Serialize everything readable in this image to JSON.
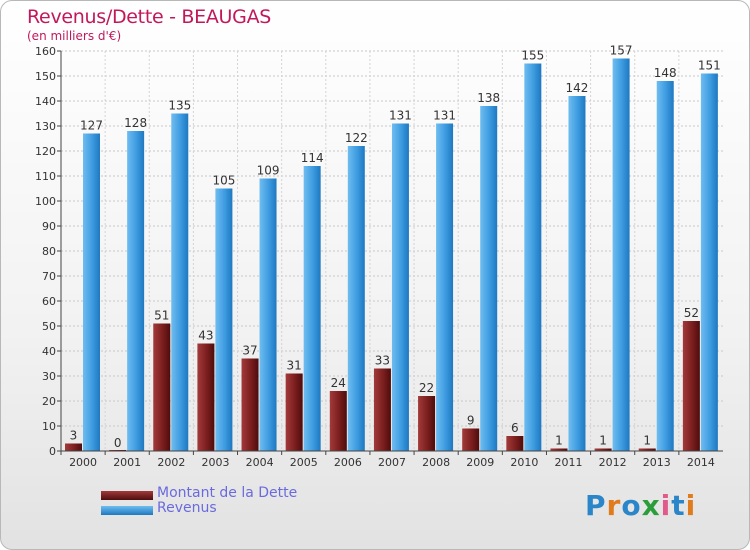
{
  "header": {
    "title": "Revenus/Dette - BEAUGAS",
    "subtitle": "(en milliers d'€)"
  },
  "chart_data": {
    "type": "bar",
    "categories": [
      "2000",
      "2001",
      "2002",
      "2003",
      "2004",
      "2005",
      "2006",
      "2007",
      "2008",
      "2009",
      "2010",
      "2011",
      "2012",
      "2013",
      "2014"
    ],
    "series": [
      {
        "name": "Montant de la Dette",
        "color": "#7b1e1e",
        "values": [
          3,
          0,
          51,
          43,
          37,
          31,
          24,
          33,
          22,
          9,
          6,
          1,
          1,
          1,
          52
        ]
      },
      {
        "name": "Revenus",
        "color": "#3d9be0",
        "values": [
          127,
          128,
          135,
          105,
          109,
          114,
          122,
          131,
          131,
          138,
          155,
          142,
          157,
          148,
          151
        ]
      }
    ],
    "ylim": [
      0,
      160
    ],
    "yticks": [
      0,
      10,
      20,
      30,
      40,
      50,
      60,
      70,
      80,
      90,
      100,
      110,
      120,
      130,
      140,
      150,
      160
    ],
    "grid": true,
    "legend_position": "bottom-left"
  },
  "legend": {
    "items": [
      {
        "label": "Montant de la Dette",
        "color": "#7b1e1e"
      },
      {
        "label": "Revenus",
        "color": "#3d9be0"
      }
    ]
  },
  "logo": {
    "text": "Proxiti",
    "colors": [
      "#2a86c9",
      "#e07b1e",
      "#2a86c9",
      "#2b9e3b",
      "#e05a8a",
      "#2a86c9",
      "#e07b1e"
    ]
  }
}
